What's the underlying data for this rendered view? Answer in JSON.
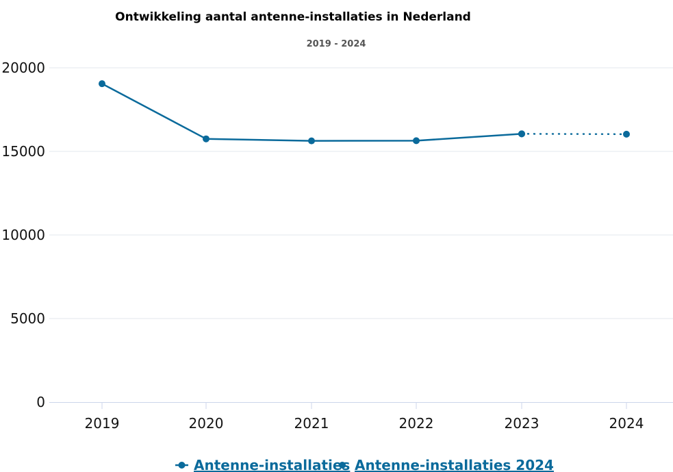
{
  "chart_data": {
    "type": "line",
    "title": "Ontwikkeling aantal antenne-installaties in Nederland",
    "subtitle": "2019 - 2024",
    "xlabel": "",
    "ylabel": "",
    "categories": [
      "2019",
      "2020",
      "2021",
      "2022",
      "2023",
      "2024"
    ],
    "ylim": [
      0,
      20000
    ],
    "yticks": [
      0,
      5000,
      10000,
      15000,
      20000
    ],
    "grid": true,
    "legend": "bottom-center",
    "series": [
      {
        "name": "Antenne-installaties",
        "color": "#0a6a9b",
        "style": "solid",
        "points": [
          {
            "x": "2019",
            "y": 19050
          },
          {
            "x": "2020",
            "y": 15750
          },
          {
            "x": "2021",
            "y": 15630
          },
          {
            "x": "2022",
            "y": 15640
          },
          {
            "x": "2023",
            "y": 16050
          }
        ]
      },
      {
        "name": "Antenne-installaties 2024",
        "color": "#0a6a9b",
        "style": "dotted",
        "points": [
          {
            "x": "2023",
            "y": 16050
          },
          {
            "x": "2024",
            "y": 16030
          }
        ]
      }
    ]
  }
}
